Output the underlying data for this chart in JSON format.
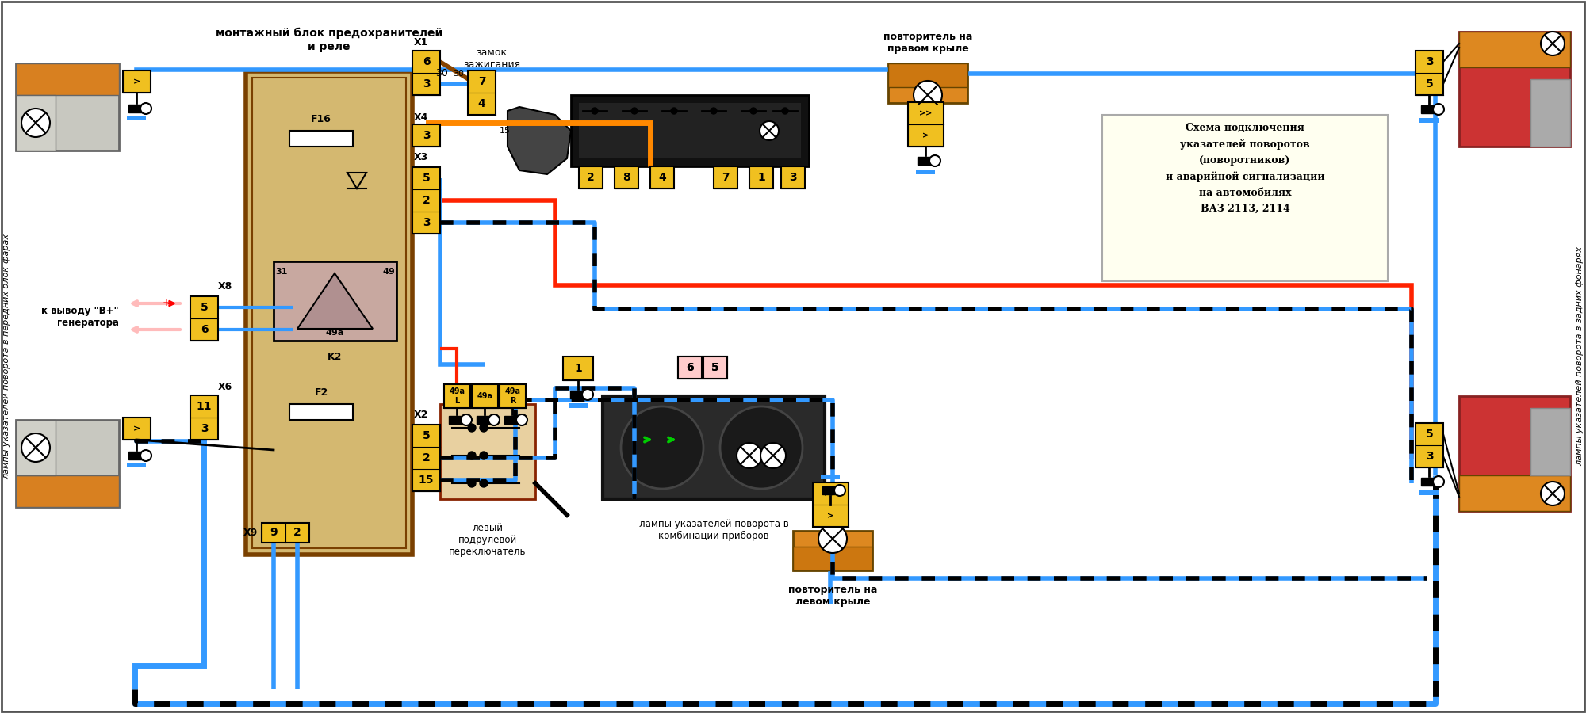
{
  "title": "Схема подключения\nуказателей поворотов\n(поворотников)\nи аварийной сигнализации\nна автомобилях\nВАЗ 2113, 2114",
  "label_fusebox": "монтажный блок предохранителей\nи реле",
  "label_left_vert": "лампы указателей поворота в передних блок-фарах",
  "label_right_vert": "лампы указателей поворота в задних фонарях",
  "label_ignition": "замок\nзажигания",
  "label_repeater_right": "повторитель на\nправом крыле",
  "label_repeater_left": "повторитель на\nлевом крыле",
  "label_steering": "левый\nподрулевой\nпереключатель",
  "label_dash": "лампы указателей поворота в\nкомбинации приборов",
  "label_generator": "к выводу \"В+\"\nгенератора",
  "bg": "#ffffff",
  "fuse_fill": "#d4b870",
  "fuse_border": "#7a4000",
  "conn_fill": "#f0c020",
  "wire_blue": "#3399ff",
  "wire_red": "#ff2200",
  "wire_orange": "#ff8800",
  "wire_black": "#000000"
}
